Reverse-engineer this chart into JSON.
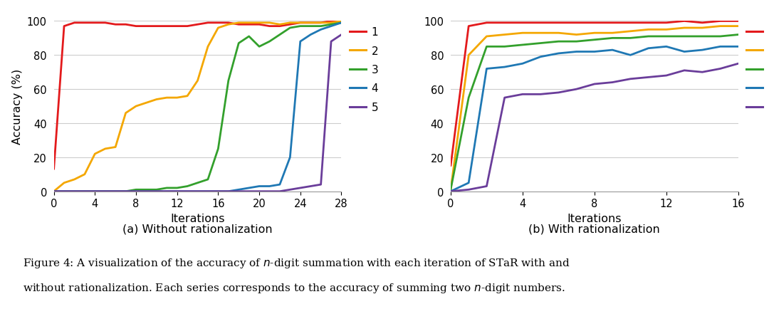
{
  "colors": [
    "#e31a1c",
    "#f4a700",
    "#33a02c",
    "#1f78b4",
    "#6a3d9a"
  ],
  "labels": [
    "1",
    "2",
    "3",
    "4",
    "5"
  ],
  "left_xlim": [
    0,
    28
  ],
  "left_xticks": [
    0,
    4,
    8,
    12,
    16,
    20,
    24,
    28
  ],
  "right_xlim": [
    0,
    16
  ],
  "right_xticks": [
    0,
    4,
    8,
    12,
    16
  ],
  "ylim": [
    0,
    100
  ],
  "yticks": [
    0,
    20,
    40,
    60,
    80,
    100
  ],
  "ylabel": "Accuracy (%)",
  "xlabel": "Iterations",
  "subtitle_left": "(a) Without rationalization",
  "subtitle_right": "(b) With rationalization",
  "caption_line1": "Figure 4: A visualization of the accuracy of $n$-digit summation with each iteration of STaR with and",
  "caption_line2": "without rationalization. Each series corresponds to the accuracy of summing two $n$-digit numbers.",
  "left_series": [
    [
      0,
      1,
      2,
      3,
      4,
      5,
      6,
      7,
      8,
      9,
      10,
      11,
      12,
      13,
      14,
      15,
      16,
      17,
      18,
      19,
      20,
      21,
      22,
      23,
      24,
      25,
      26,
      27,
      28
    ],
    [
      13,
      97,
      99,
      99,
      99,
      99,
      98,
      98,
      97,
      97,
      97,
      97,
      97,
      97,
      98,
      99,
      99,
      99,
      98,
      98,
      98,
      97,
      97,
      98,
      99,
      99,
      99,
      100,
      100
    ],
    [
      0,
      5,
      7,
      10,
      22,
      25,
      26,
      46,
      50,
      52,
      54,
      55,
      55,
      56,
      65,
      85,
      96,
      98,
      99,
      99,
      99,
      99,
      98,
      99,
      99,
      99,
      99,
      99,
      100
    ],
    [
      0,
      0,
      0,
      0,
      0,
      0,
      0,
      0,
      1,
      1,
      1,
      2,
      2,
      3,
      5,
      7,
      25,
      65,
      87,
      91,
      85,
      88,
      92,
      96,
      97,
      97,
      97,
      98,
      99
    ],
    [
      0,
      0,
      0,
      0,
      0,
      0,
      0,
      0,
      0,
      0,
      0,
      0,
      0,
      0,
      0,
      0,
      0,
      0,
      1,
      2,
      3,
      3,
      4,
      20,
      88,
      92,
      95,
      97,
      99
    ],
    [
      0,
      0,
      0,
      0,
      0,
      0,
      0,
      0,
      0,
      0,
      0,
      0,
      0,
      0,
      0,
      0,
      0,
      0,
      0,
      0,
      0,
      0,
      0,
      1,
      2,
      3,
      4,
      88,
      92
    ]
  ],
  "right_series": [
    [
      0,
      1,
      2,
      3,
      4,
      5,
      6,
      7,
      8,
      9,
      10,
      11,
      12,
      13,
      14,
      15,
      16
    ],
    [
      15,
      97,
      99,
      99,
      99,
      99,
      99,
      99,
      99,
      99,
      99,
      99,
      99,
      100,
      99,
      100,
      100
    ],
    [
      1,
      80,
      91,
      92,
      93,
      93,
      93,
      92,
      93,
      93,
      94,
      95,
      95,
      96,
      96,
      97,
      97
    ],
    [
      1,
      55,
      85,
      85,
      86,
      87,
      88,
      88,
      89,
      90,
      90,
      91,
      91,
      91,
      91,
      91,
      92
    ],
    [
      0,
      5,
      72,
      73,
      75,
      79,
      81,
      82,
      82,
      83,
      80,
      84,
      85,
      82,
      83,
      85,
      85
    ],
    [
      0,
      1,
      3,
      55,
      57,
      57,
      58,
      60,
      63,
      64,
      66,
      67,
      68,
      71,
      70,
      72,
      75
    ]
  ]
}
